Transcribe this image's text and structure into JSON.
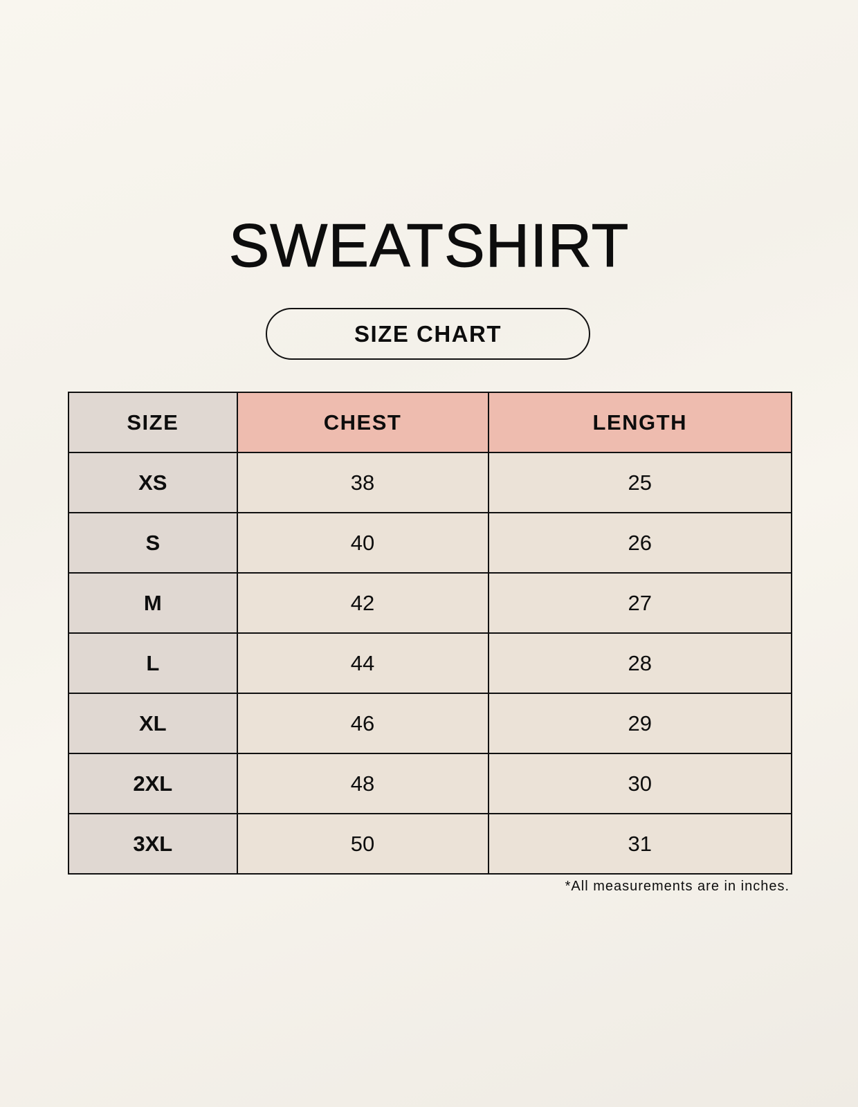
{
  "title": "SWEATSHIRT",
  "subtitle": "SIZE CHART",
  "table": {
    "headers": [
      "SIZE",
      "CHEST",
      "LENGTH"
    ],
    "rows": [
      [
        "XS",
        "38",
        "25"
      ],
      [
        "S",
        "40",
        "26"
      ],
      [
        "M",
        "42",
        "27"
      ],
      [
        "L",
        "44",
        "28"
      ],
      [
        "XL",
        "46",
        "29"
      ],
      [
        "2XL",
        "48",
        "30"
      ],
      [
        "3XL",
        "50",
        "31"
      ]
    ]
  },
  "footnote": "*All measurements are in inches.",
  "colors": {
    "size_column": "#e0d8d2",
    "header_accent": "#eebcaf",
    "value_cells": "#ebe2d7"
  }
}
